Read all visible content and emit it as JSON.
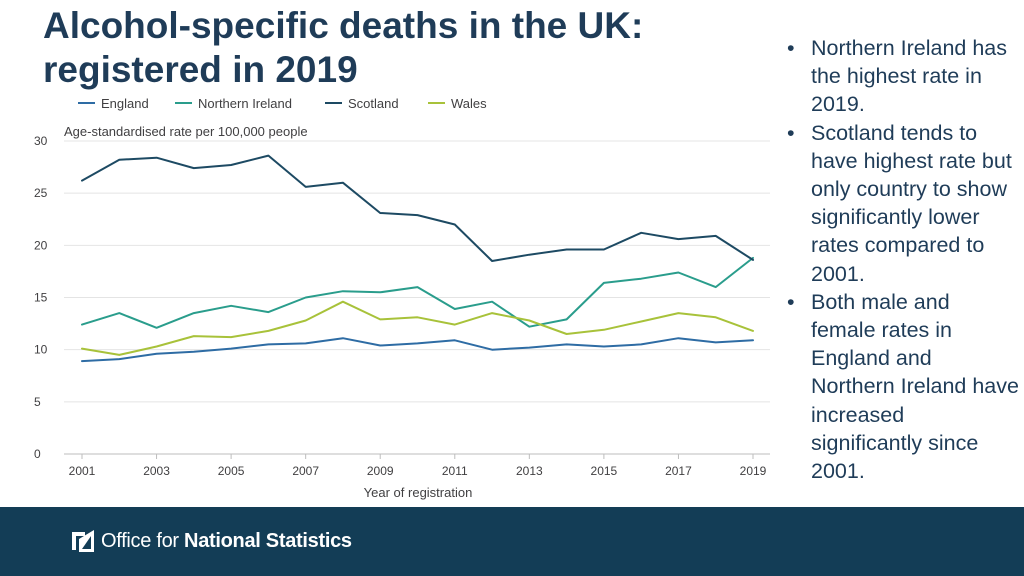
{
  "slide": {
    "title": "Alcohol-specific deaths in the UK: registered in 2019",
    "bullets": [
      "Northern Ireland has the highest rate in 2019.",
      "Scotland tends to have highest rate but only country to show significantly lower rates compared to 2001.",
      "Both male and female rates in England and Northern Ireland have increased significantly since 2001."
    ]
  },
  "footer": {
    "logo_icon": "ons-logo-icon",
    "logo_text_regular": "Office for",
    "logo_text_bold": "National Statistics"
  },
  "chart_data": {
    "type": "line",
    "ylabel": "Age-standardised rate per 100,000 people",
    "xlabel": "Year of registration",
    "ylim": [
      0,
      30
    ],
    "yticks": [
      0,
      5,
      10,
      15,
      20,
      25,
      30
    ],
    "xlim": [
      2001,
      2019
    ],
    "xticks": [
      2001,
      2003,
      2005,
      2007,
      2009,
      2011,
      2013,
      2015,
      2017,
      2019
    ],
    "x": [
      2001,
      2002,
      2003,
      2004,
      2005,
      2006,
      2007,
      2008,
      2009,
      2010,
      2011,
      2012,
      2013,
      2014,
      2015,
      2016,
      2017,
      2018,
      2019
    ],
    "grid": "horizontal",
    "legend_position": "top",
    "series": [
      {
        "name": "England",
        "color": "#2e6ca4",
        "values": [
          8.9,
          9.1,
          9.6,
          9.8,
          10.1,
          10.5,
          10.6,
          11.1,
          10.4,
          10.6,
          10.9,
          10.0,
          10.2,
          10.5,
          10.3,
          10.5,
          11.1,
          10.7,
          10.9
        ]
      },
      {
        "name": "Northern Ireland",
        "color": "#2a9d8c",
        "values": [
          12.4,
          13.5,
          12.1,
          13.5,
          14.2,
          13.6,
          15.0,
          15.6,
          15.5,
          16.0,
          13.9,
          14.6,
          12.2,
          12.9,
          16.4,
          16.8,
          17.4,
          16.0,
          18.8
        ]
      },
      {
        "name": "Scotland",
        "color": "#1d4a63",
        "values": [
          26.2,
          28.2,
          28.4,
          27.4,
          27.7,
          28.6,
          25.6,
          26.0,
          23.1,
          22.9,
          22.0,
          18.5,
          19.1,
          19.6,
          19.6,
          21.2,
          20.6,
          20.9,
          18.6
        ]
      },
      {
        "name": "Wales",
        "color": "#a8c23a",
        "values": [
          10.1,
          9.5,
          10.3,
          11.3,
          11.2,
          11.8,
          12.8,
          14.6,
          12.9,
          13.1,
          12.4,
          13.5,
          12.8,
          11.5,
          11.9,
          12.7,
          13.5,
          13.1,
          11.8
        ]
      }
    ]
  }
}
